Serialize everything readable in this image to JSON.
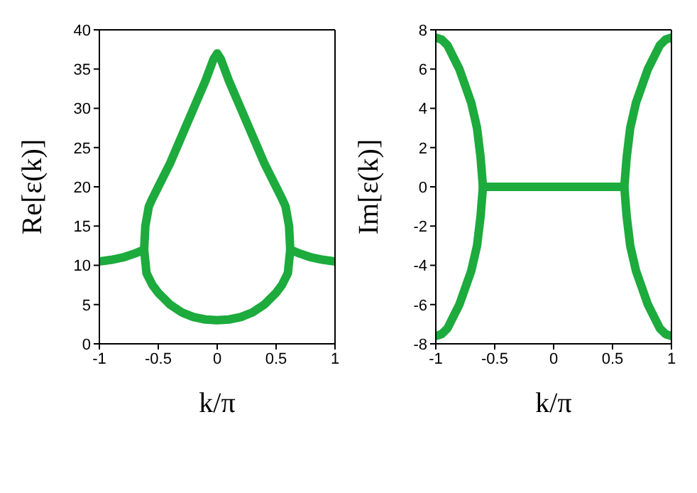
{
  "chart_data": [
    {
      "type": "line",
      "xlabel": "k/π",
      "ylabel": "Re[ε(k)]",
      "xlim": [
        -1,
        1
      ],
      "xticks": [
        -1,
        -0.5,
        0,
        0.5,
        1
      ],
      "ylim": [
        0,
        40
      ],
      "yticks": [
        0,
        5,
        10,
        15,
        20,
        25,
        30,
        35,
        40
      ],
      "grid": false,
      "marker": "none",
      "line_style": "solid",
      "series": [
        {
          "color": "#1cab3c",
          "x": [
            -1,
            -0.9,
            -0.8,
            -0.7,
            -0.62,
            -0.61,
            -0.58,
            -0.55,
            -0.5,
            -0.4,
            -0.3,
            -0.2,
            -0.1,
            -0.03,
            0,
            0.03,
            0.1,
            0.2,
            0.3,
            0.4,
            0.5,
            0.55,
            0.58,
            0.61,
            0.62,
            0.7,
            0.8,
            0.9,
            1
          ],
          "values": [
            10.5,
            10.7,
            11,
            11.5,
            12,
            15,
            17.5,
            18.5,
            20,
            23,
            26.5,
            30,
            33.5,
            36.3,
            37,
            36.3,
            33.5,
            30,
            26.5,
            23,
            20,
            18.5,
            17.5,
            15,
            12,
            11.5,
            11,
            10.7,
            10.5
          ]
        },
        {
          "color": "#1cab3c",
          "x": [
            -0.62,
            -0.6,
            -0.55,
            -0.5,
            -0.4,
            -0.3,
            -0.2,
            -0.1,
            0,
            0.1,
            0.2,
            0.3,
            0.4,
            0.5,
            0.55,
            0.6,
            0.62
          ],
          "values": [
            12,
            9,
            7.5,
            6.5,
            5,
            4,
            3.4,
            3.1,
            3,
            3.1,
            3.4,
            4,
            5,
            6.5,
            7.5,
            9,
            12
          ]
        }
      ]
    },
    {
      "type": "line",
      "xlabel": "k/π",
      "ylabel": "Im[ε(k)]",
      "xlim": [
        -1,
        1
      ],
      "xticks": [
        -1,
        -0.5,
        0,
        0.5,
        1
      ],
      "ylim": [
        -8,
        8
      ],
      "yticks": [
        -8,
        -6,
        -4,
        -2,
        0,
        2,
        4,
        6,
        8
      ],
      "grid": false,
      "marker": "none",
      "line_style": "solid",
      "series": [
        {
          "color": "#1cab3c",
          "x": [
            -1,
            -0.95,
            -0.9,
            -0.8,
            -0.7,
            -0.65,
            -0.62,
            -0.6,
            -0.62,
            -0.65,
            -0.7,
            -0.8,
            -0.9,
            -0.95,
            -1
          ],
          "values": [
            7.6,
            7.5,
            7.2,
            6,
            4.3,
            3,
            1.5,
            0,
            -1.5,
            -3,
            -4.3,
            -6,
            -7.2,
            -7.5,
            -7.6
          ]
        },
        {
          "color": "#1cab3c",
          "x": [
            -0.6,
            0.6
          ],
          "values": [
            0,
            0
          ]
        },
        {
          "color": "#1cab3c",
          "x": [
            1,
            0.95,
            0.9,
            0.8,
            0.7,
            0.65,
            0.62,
            0.6,
            0.62,
            0.65,
            0.7,
            0.8,
            0.9,
            0.95,
            1
          ],
          "values": [
            7.6,
            7.5,
            7.2,
            6,
            4.3,
            3,
            1.5,
            0,
            -1.5,
            -3,
            -4.3,
            -6,
            -7.2,
            -7.5,
            -7.6
          ]
        }
      ]
    }
  ]
}
